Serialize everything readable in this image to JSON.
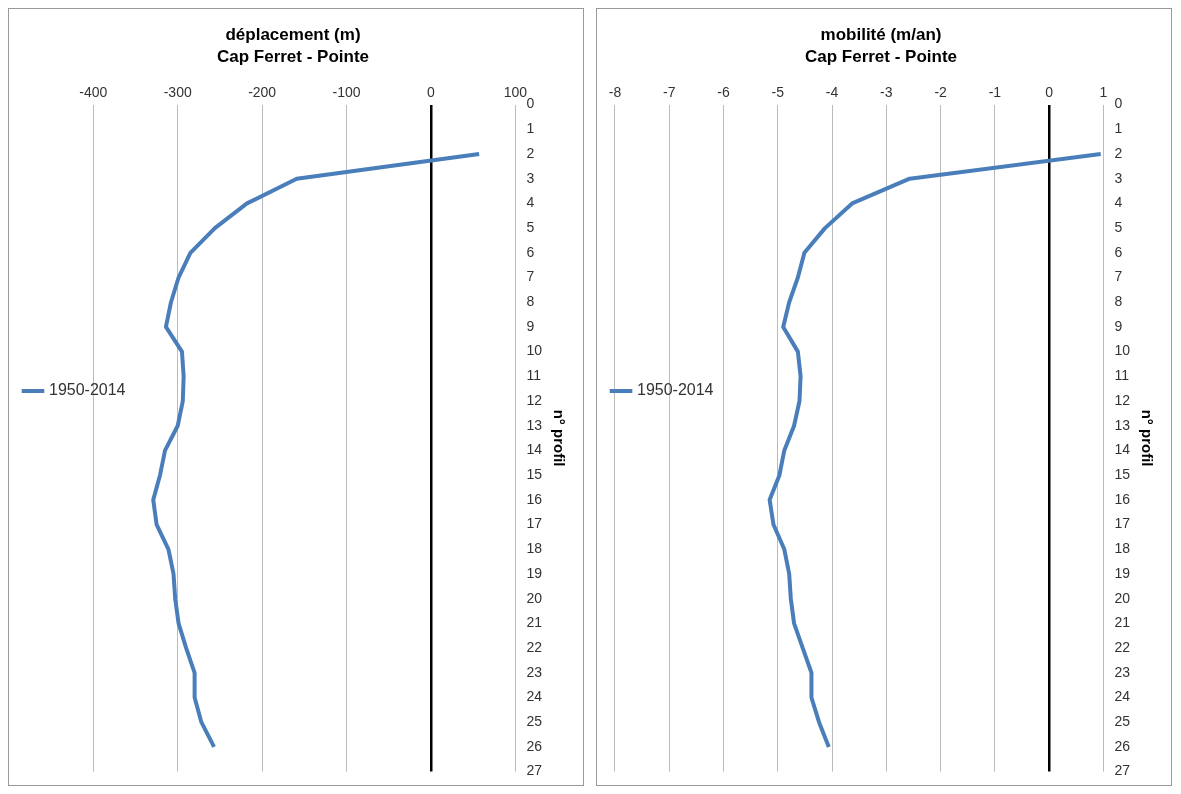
{
  "chart_data": [
    {
      "type": "line",
      "orientation": "horizontal",
      "title": "déplacement (m)",
      "subtitle": "Cap Ferret - Pointe",
      "ylabel": "n° profil",
      "categories": [
        "0",
        "1",
        "2",
        "3",
        "4",
        "5",
        "6",
        "7",
        "8",
        "9",
        "10",
        "11",
        "12",
        "13",
        "14",
        "15",
        "16",
        "17",
        "18",
        "19",
        "20",
        "21",
        "22",
        "23",
        "24",
        "25",
        "26",
        "27"
      ],
      "series": [
        {
          "name": "1950-2014",
          "color": "#4a7ebb",
          "values": [
            null,
            null,
            57,
            -159,
            -218,
            -256,
            -285,
            -299,
            -308,
            -314,
            -295,
            -293,
            -294,
            -300,
            -315,
            -321,
            -329,
            -325,
            -311,
            -305,
            -303,
            -299,
            -290,
            -280,
            -280,
            -272,
            -257,
            null
          ]
        }
      ],
      "xlim": [
        -400,
        100
      ],
      "xticks": [
        -400,
        -300,
        -200,
        -100,
        0,
        100
      ],
      "grid": "x",
      "legend": "left"
    },
    {
      "type": "line",
      "orientation": "horizontal",
      "title": "mobilité (m/an)",
      "subtitle": "Cap Ferret - Pointe",
      "ylabel": "n° profil",
      "categories": [
        "0",
        "1",
        "2",
        "3",
        "4",
        "5",
        "6",
        "7",
        "8",
        "9",
        "10",
        "11",
        "12",
        "13",
        "14",
        "15",
        "16",
        "17",
        "18",
        "19",
        "20",
        "21",
        "22",
        "23",
        "24",
        "25",
        "26",
        "27"
      ],
      "series": [
        {
          "name": "1950-2014",
          "color": "#4a7ebb",
          "values": [
            null,
            null,
            0.95,
            -2.57,
            -3.63,
            -4.13,
            -4.51,
            -4.63,
            -4.79,
            -4.9,
            -4.63,
            -4.58,
            -4.6,
            -4.7,
            -4.88,
            -4.97,
            -5.15,
            -5.08,
            -4.88,
            -4.79,
            -4.76,
            -4.7,
            -4.54,
            -4.38,
            -4.38,
            -4.24,
            -4.06,
            null
          ]
        }
      ],
      "xlim": [
        -8,
        1
      ],
      "xticks": [
        -8,
        -7,
        -6,
        -5,
        -4,
        -3,
        -2,
        -1,
        0,
        1
      ],
      "grid": "x",
      "legend": "left"
    }
  ]
}
